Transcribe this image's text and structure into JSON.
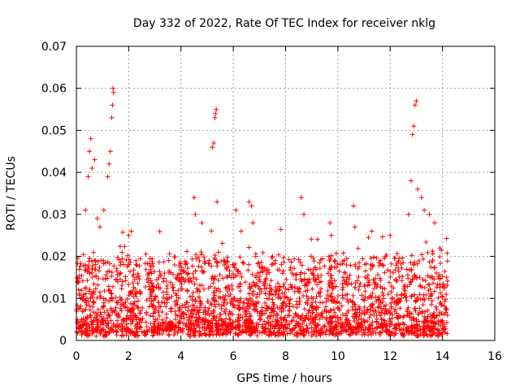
{
  "chart_data": {
    "type": "scatter",
    "title": "Day 332 of 2022, Rate Of TEC Index for receiver nklg",
    "xlabel": "GPS time / hours",
    "ylabel": "ROTI / TECUs",
    "xlim": [
      0,
      16
    ],
    "ylim": [
      0,
      0.07
    ],
    "x_ticks": [
      0,
      2,
      4,
      6,
      8,
      10,
      12,
      14,
      16
    ],
    "x_tick_labels": [
      "0",
      "2",
      "4",
      "6",
      "8",
      "10",
      "12",
      "14",
      "16"
    ],
    "y_ticks": [
      0,
      0.01,
      0.02,
      0.03,
      0.04,
      0.05,
      0.06,
      0.07
    ],
    "y_tick_labels": [
      "0",
      "0.01",
      "0.02",
      "0.03",
      "0.04",
      "0.05",
      "0.06",
      "0.07"
    ],
    "grid": true,
    "marker": "+",
    "color": "#ff0000",
    "data_range_hours": [
      0,
      14.2
    ],
    "baseline_roti": [
      0.002,
      0.02
    ],
    "peaks": [
      {
        "x": 0.35,
        "y": 0.031
      },
      {
        "x": 0.45,
        "y": 0.039
      },
      {
        "x": 0.5,
        "y": 0.045
      },
      {
        "x": 0.55,
        "y": 0.048
      },
      {
        "x": 0.6,
        "y": 0.041
      },
      {
        "x": 0.7,
        "y": 0.043
      },
      {
        "x": 0.8,
        "y": 0.029
      },
      {
        "x": 0.9,
        "y": 0.027
      },
      {
        "x": 1.05,
        "y": 0.031
      },
      {
        "x": 1.2,
        "y": 0.039
      },
      {
        "x": 1.25,
        "y": 0.042
      },
      {
        "x": 1.3,
        "y": 0.045
      },
      {
        "x": 1.35,
        "y": 0.053
      },
      {
        "x": 1.38,
        "y": 0.056
      },
      {
        "x": 1.4,
        "y": 0.06
      },
      {
        "x": 1.42,
        "y": 0.059
      },
      {
        "x": 2.0,
        "y": 0.025
      },
      {
        "x": 2.1,
        "y": 0.026
      },
      {
        "x": 4.5,
        "y": 0.034
      },
      {
        "x": 4.55,
        "y": 0.03
      },
      {
        "x": 4.8,
        "y": 0.028
      },
      {
        "x": 5.2,
        "y": 0.046
      },
      {
        "x": 5.25,
        "y": 0.047
      },
      {
        "x": 5.3,
        "y": 0.053
      },
      {
        "x": 5.32,
        "y": 0.054
      },
      {
        "x": 5.35,
        "y": 0.055
      },
      {
        "x": 5.38,
        "y": 0.033
      },
      {
        "x": 6.1,
        "y": 0.031
      },
      {
        "x": 6.3,
        "y": 0.026
      },
      {
        "x": 6.6,
        "y": 0.033
      },
      {
        "x": 6.7,
        "y": 0.032
      },
      {
        "x": 6.75,
        "y": 0.028
      },
      {
        "x": 7.5,
        "y": 0.02
      },
      {
        "x": 8.6,
        "y": 0.034
      },
      {
        "x": 8.7,
        "y": 0.03
      },
      {
        "x": 9.7,
        "y": 0.028
      },
      {
        "x": 9.75,
        "y": 0.025
      },
      {
        "x": 10.6,
        "y": 0.032
      },
      {
        "x": 10.65,
        "y": 0.027
      },
      {
        "x": 11.3,
        "y": 0.026
      },
      {
        "x": 12.0,
        "y": 0.025
      },
      {
        "x": 12.7,
        "y": 0.03
      },
      {
        "x": 12.8,
        "y": 0.038
      },
      {
        "x": 12.85,
        "y": 0.049
      },
      {
        "x": 12.9,
        "y": 0.051
      },
      {
        "x": 12.95,
        "y": 0.056
      },
      {
        "x": 13.0,
        "y": 0.057
      },
      {
        "x": 13.05,
        "y": 0.036
      },
      {
        "x": 13.2,
        "y": 0.034
      },
      {
        "x": 13.3,
        "y": 0.031
      },
      {
        "x": 13.5,
        "y": 0.03
      },
      {
        "x": 13.7,
        "y": 0.028
      },
      {
        "x": 13.9,
        "y": 0.022
      }
    ]
  }
}
